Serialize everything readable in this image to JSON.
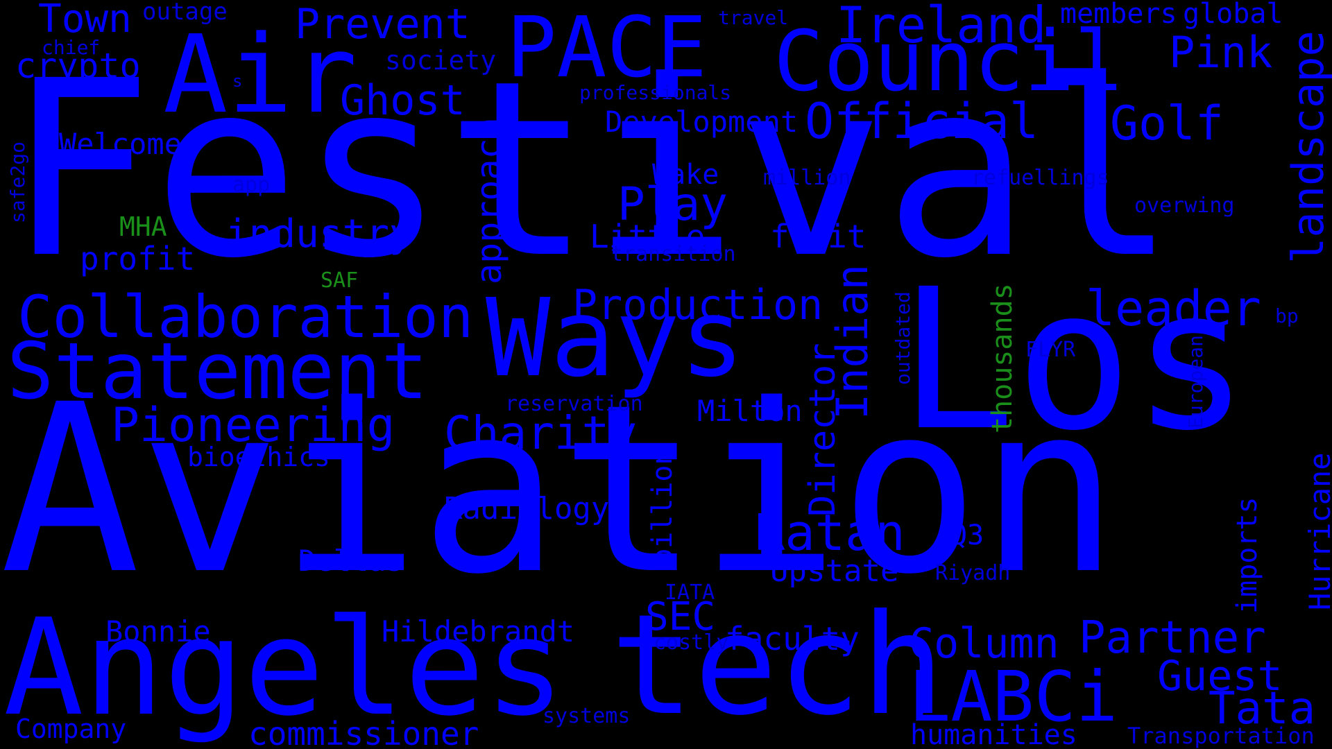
{
  "colors": {
    "background": "#000000",
    "primary_word": "#0000ff",
    "secondary_word": "#1a8f1a"
  },
  "words": {
    "festival": "Festival",
    "aviation": "Aviation",
    "los": "Los",
    "angeles": "Angeles",
    "tech": "tech",
    "ways": "Ways",
    "air": "Air",
    "pace": "PACE",
    "council": "Council",
    "statement": "Statement",
    "collaboration": "Collaboration",
    "labci": "LABCi",
    "ireland": "Ireland",
    "official": "Official",
    "golf": "Golf",
    "pink": "Pink",
    "landscape": "landscape",
    "town": "Town",
    "outage": "outage",
    "prevent": "Prevent",
    "ghost": "Ghost",
    "crypto": "crypto",
    "chief": "chief",
    "society": "society",
    "s": "s",
    "professionals": "professionals",
    "travel": "travel",
    "members": "members",
    "global": "global",
    "development": "Development",
    "welcomes": "Welcomes",
    "safe2go": "safe2go",
    "app": "app",
    "wake": "Wake",
    "million": "million",
    "refuellings": "refuellings",
    "overwing": "overwing",
    "play": "Play",
    "mha": "MHA",
    "industry": "industry",
    "little": "Little",
    "fruit": "fruit",
    "profit": "profit",
    "transition": "transition",
    "saf": "SAF",
    "approach": "approach",
    "production": "Production",
    "leader": "leader",
    "indian": "Indian",
    "outdated": "outdated",
    "thousands": "thousands",
    "bp": "bp",
    "flyr": "FLYR",
    "european": "European",
    "director": "Director",
    "reservation": "reservation",
    "pioneering": "Pioneering",
    "charity": "Charity",
    "milton": "Milton",
    "bioethics": "bioethics",
    "billion": "billion",
    "radiology": "Radiology",
    "ratan": "Ratan",
    "q3": "Q3",
    "deltas": "Deltas",
    "upstate": "Upstate",
    "riyadh": "Riyadh",
    "imports": "imports",
    "hurricane": "Hurricane",
    "iata": "IATA",
    "sec": "SEC",
    "bonnie": "Bonnie",
    "hildebrandt": "Hildebrandt",
    "costly": "costly",
    "faculty": "faculty",
    "column": "Column",
    "partner": "Partner",
    "guest": "Guest",
    "tata": "Tata",
    "company": "Company",
    "commissioner": "commissioner",
    "systems": "systems",
    "humanities": "humanities",
    "transportation": "Transportation"
  }
}
